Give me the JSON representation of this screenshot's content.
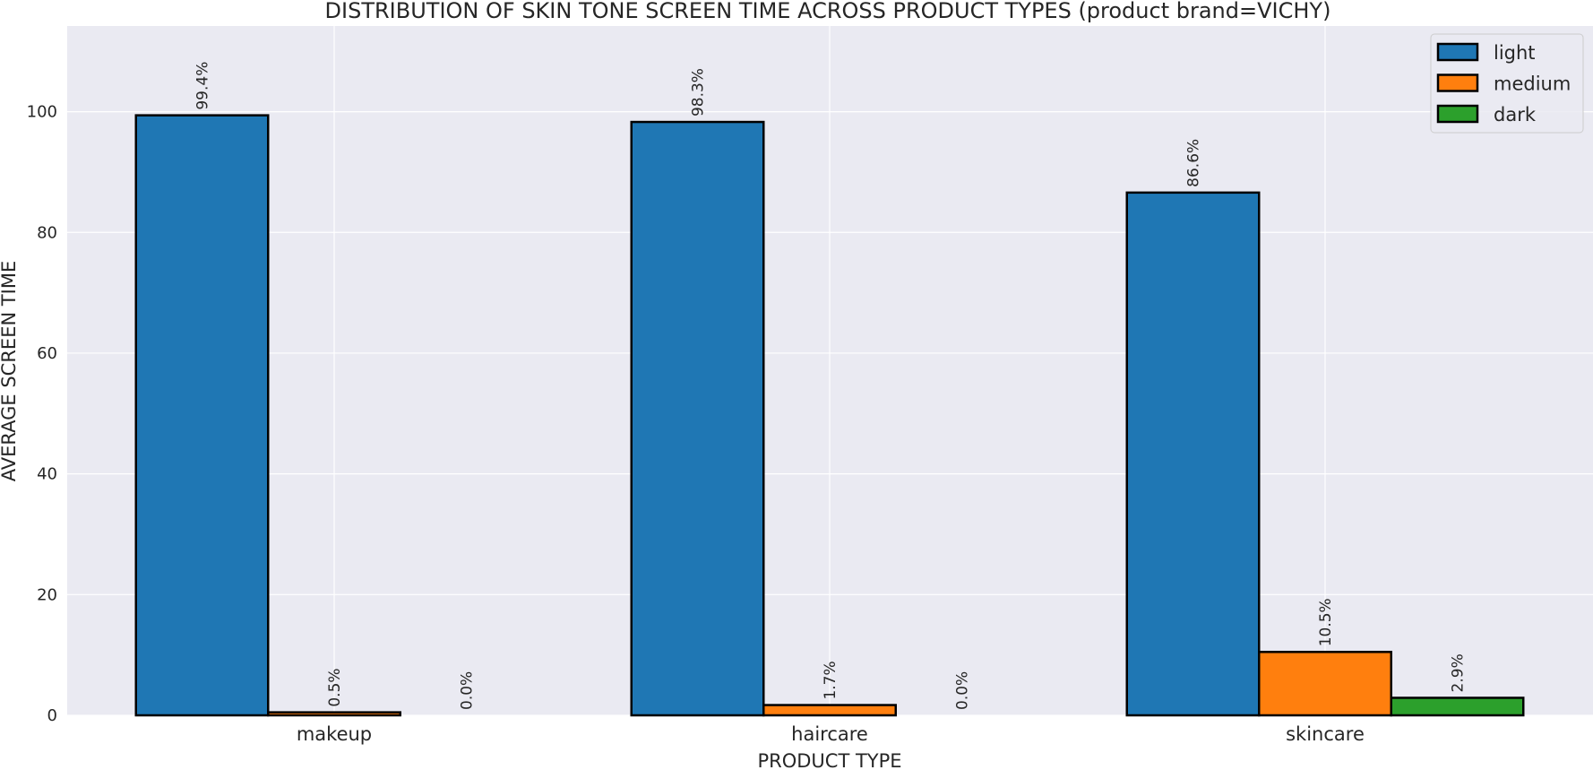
{
  "chart_data": {
    "type": "bar",
    "title": "DISTRIBUTION OF SKIN TONE SCREEN TIME ACROSS PRODUCT TYPES (product brand=VICHY)",
    "xlabel": "PRODUCT TYPE",
    "ylabel": "AVERAGE SCREEN TIME",
    "categories": [
      "makeup",
      "haircare",
      "skincare"
    ],
    "series": [
      {
        "name": "light",
        "values": [
          99.4,
          98.3,
          86.6
        ],
        "labels": [
          "99.4%",
          "98.3%",
          "86.6%"
        ],
        "color": "#1f77b4"
      },
      {
        "name": "medium",
        "values": [
          0.5,
          1.7,
          10.5
        ],
        "labels": [
          "0.5%",
          "1.7%",
          "10.5%"
        ],
        "color": "#ff7f0e"
      },
      {
        "name": "dark",
        "values": [
          0.0,
          0.0,
          2.9
        ],
        "labels": [
          "0.0%",
          "0.0%",
          "2.9%"
        ],
        "color": "#2ca02c"
      }
    ],
    "ylim": [
      0,
      114.2
    ],
    "yticks": [
      0,
      20,
      40,
      60,
      80,
      100
    ],
    "grid": true,
    "background": "#eaeaf2",
    "grid_color": "#ffffff",
    "legend_position": "top-right"
  }
}
